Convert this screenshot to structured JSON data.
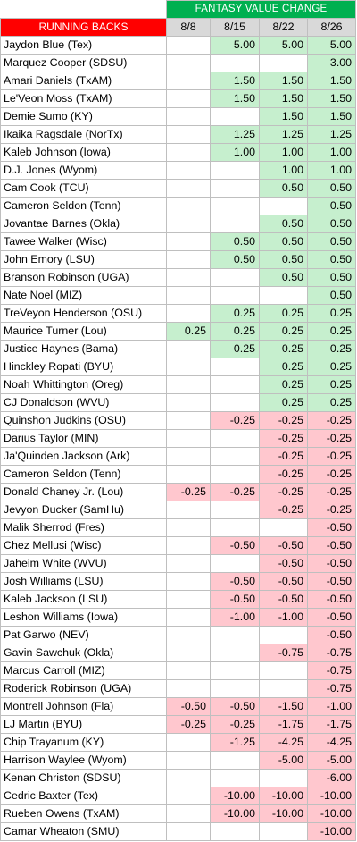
{
  "header": {
    "group_title": "FANTASY VALUE CHANGE",
    "section_title": "RUNNING BACKS",
    "dates": [
      "8/8",
      "8/15",
      "8/22",
      "8/26"
    ]
  },
  "rows": [
    {
      "name": "Jaydon Blue (Tex)",
      "v": [
        "",
        "5.00",
        "5.00",
        "5.00"
      ]
    },
    {
      "name": "Marquez Cooper (SDSU)",
      "v": [
        "",
        "",
        "",
        "3.00"
      ]
    },
    {
      "name": "Amari Daniels  (TxAM)",
      "v": [
        "",
        "1.50",
        "1.50",
        "1.50"
      ]
    },
    {
      "name": "Le'Veon Moss  (TxAM)",
      "v": [
        "",
        "1.50",
        "1.50",
        "1.50"
      ]
    },
    {
      "name": "Demie Sumo (KY)",
      "v": [
        "",
        "",
        "1.50",
        "1.50"
      ]
    },
    {
      "name": "Ikaika Ragsdale (NorTx)",
      "v": [
        "",
        "1.25",
        "1.25",
        "1.25"
      ]
    },
    {
      "name": "Kaleb Johnson (Iowa)",
      "v": [
        "",
        "1.00",
        "1.00",
        "1.00"
      ]
    },
    {
      "name": "D.J. Jones (Wyom)",
      "v": [
        "",
        "",
        "1.00",
        "1.00"
      ]
    },
    {
      "name": "Cam Cook (TCU)",
      "v": [
        "",
        "",
        "0.50",
        "0.50"
      ]
    },
    {
      "name": "Cameron Seldon (Tenn)",
      "v": [
        "",
        "",
        "",
        "0.50"
      ]
    },
    {
      "name": "Jovantae Barnes (Okla)",
      "v": [
        "",
        "",
        "0.50",
        "0.50"
      ]
    },
    {
      "name": "Tawee Walker (Wisc)",
      "v": [
        "",
        "0.50",
        "0.50",
        "0.50"
      ]
    },
    {
      "name": "John Emory (LSU)",
      "v": [
        "",
        "0.50",
        "0.50",
        "0.50"
      ]
    },
    {
      "name": "Branson Robinson (UGA)",
      "v": [
        "",
        "",
        "0.50",
        "0.50"
      ]
    },
    {
      "name": "Nate Noel (MIZ)",
      "v": [
        "",
        "",
        "",
        "0.50"
      ]
    },
    {
      "name": "TreVeyon Henderson (OSU)",
      "v": [
        "",
        "0.25",
        "0.25",
        "0.25"
      ]
    },
    {
      "name": "Maurice Turner (Lou)",
      "v": [
        "0.25",
        "0.25",
        "0.25",
        "0.25"
      ]
    },
    {
      "name": "Justice Haynes (Bama)",
      "v": [
        "",
        "0.25",
        "0.25",
        "0.25"
      ]
    },
    {
      "name": "Hinckley Ropati (BYU)",
      "v": [
        "",
        "",
        "0.25",
        "0.25"
      ]
    },
    {
      "name": "Noah Whittington (Oreg)",
      "v": [
        "",
        "",
        "0.25",
        "0.25"
      ]
    },
    {
      "name": "CJ Donaldson (WVU)",
      "v": [
        "",
        "",
        "0.25",
        "0.25"
      ]
    },
    {
      "name": "Quinshon Judkins (OSU)",
      "v": [
        "",
        "-0.25",
        "-0.25",
        "-0.25"
      ]
    },
    {
      "name": "Darius Taylor (MIN)",
      "v": [
        "",
        "",
        "-0.25",
        "-0.25"
      ]
    },
    {
      "name": "Ja'Quinden Jackson (Ark)",
      "v": [
        "",
        "",
        "-0.25",
        "-0.25"
      ]
    },
    {
      "name": "Cameron Seldon (Tenn)",
      "v": [
        "",
        "",
        "-0.25",
        "-0.25"
      ]
    },
    {
      "name": "Donald Chaney Jr. (Lou)",
      "v": [
        "-0.25",
        "-0.25",
        "-0.25",
        "-0.25"
      ]
    },
    {
      "name": "Jevyon Ducker (SamHu)",
      "v": [
        "",
        "",
        "-0.25",
        "-0.25"
      ]
    },
    {
      "name": "Malik Sherrod (Fres)",
      "v": [
        "",
        "",
        "",
        "-0.50"
      ]
    },
    {
      "name": "Chez Mellusi (Wisc)",
      "v": [
        "",
        "-0.50",
        "-0.50",
        "-0.50"
      ]
    },
    {
      "name": "Jaheim White (WVU)",
      "v": [
        "",
        "",
        "-0.50",
        "-0.50"
      ]
    },
    {
      "name": "Josh Williams (LSU)",
      "v": [
        "",
        "-0.50",
        "-0.50",
        "-0.50"
      ]
    },
    {
      "name": "Kaleb Jackson (LSU)",
      "v": [
        "",
        "-0.50",
        "-0.50",
        "-0.50"
      ]
    },
    {
      "name": "Leshon Williams (Iowa)",
      "v": [
        "",
        "-1.00",
        "-1.00",
        "-0.50"
      ]
    },
    {
      "name": "Pat Garwo (NEV)",
      "v": [
        "",
        "",
        "",
        "-0.50"
      ]
    },
    {
      "name": "Gavin Sawchuk (Okla)",
      "v": [
        "",
        "",
        "-0.75",
        "-0.75"
      ]
    },
    {
      "name": "Marcus Carroll (MIZ)",
      "v": [
        "",
        "",
        "",
        "-0.75"
      ]
    },
    {
      "name": "Roderick Robinson (UGA)",
      "v": [
        "",
        "",
        "",
        "-0.75"
      ]
    },
    {
      "name": "Montrell Johnson (Fla)",
      "v": [
        "-0.50",
        "-0.50",
        "-1.50",
        "-1.00"
      ]
    },
    {
      "name": "LJ Martin (BYU)",
      "v": [
        "-0.25",
        "-0.25",
        "-1.75",
        "-1.75"
      ]
    },
    {
      "name": "Chip Trayanum (KY)",
      "v": [
        "",
        "-1.25",
        "-4.25",
        "-4.25"
      ]
    },
    {
      "name": "Harrison Waylee (Wyom)",
      "v": [
        "",
        "",
        "-5.00",
        "-5.00"
      ]
    },
    {
      "name": "Kenan Christon (SDSU)",
      "v": [
        "",
        "",
        "",
        "-6.00"
      ]
    },
    {
      "name": "Cedric Baxter (Tex)",
      "v": [
        "",
        "-10.00",
        "-10.00",
        "-10.00"
      ]
    },
    {
      "name": "Rueben Owens (TxAM)",
      "v": [
        "",
        "-10.00",
        "-10.00",
        "-10.00"
      ]
    },
    {
      "name": "Camar Wheaton (SMU)",
      "v": [
        "",
        "",
        "",
        "-10.00"
      ]
    }
  ],
  "colors": {
    "header_green": "#00b050",
    "header_red": "#ff0000",
    "date_gray": "#d9d9d9",
    "positive_fill": "#c6efce",
    "negative_fill": "#ffc7ce"
  }
}
